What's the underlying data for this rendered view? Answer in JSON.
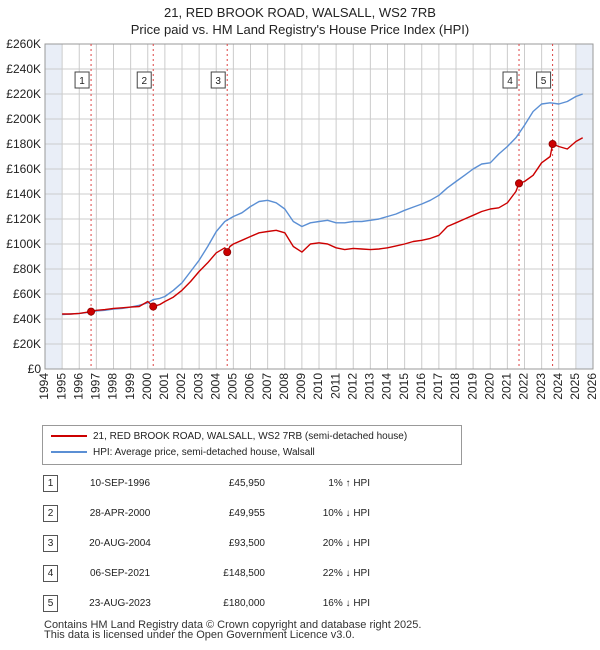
{
  "title_line1": "21, RED BROOK ROAD, WALSALL, WS2 7RB",
  "title_line2": "Price paid vs. HM Land Registry's House Price Index (HPI)",
  "colors": {
    "property": "#cc0000",
    "hpi": "#5b8fd4",
    "grid": "#cccccc",
    "shade": "#e9eef7",
    "event_line": "#dd4444"
  },
  "legend": {
    "property_label": "21, RED BROOK ROAD, WALSALL, WS2 7RB (semi-detached house)",
    "hpi_label": "HPI: Average price, semi-detached house, Walsall"
  },
  "transactions": [
    {
      "num": "1",
      "date": "10-SEP-1996",
      "price": "£45,950",
      "hpi": "1% ↑ HPI"
    },
    {
      "num": "2",
      "date": "28-APR-2000",
      "price": "£49,955",
      "hpi": "10% ↓ HPI"
    },
    {
      "num": "3",
      "date": "20-AUG-2004",
      "price": "£93,500",
      "hpi": "20% ↓ HPI"
    },
    {
      "num": "4",
      "date": "06-SEP-2021",
      "price": "£148,500",
      "hpi": "22% ↓ HPI"
    },
    {
      "num": "5",
      "date": "23-AUG-2023",
      "price": "£180,000",
      "hpi": "16% ↓ HPI"
    }
  ],
  "footer_line1": "Contains HM Land Registry data © Crown copyright and database right 2025.",
  "footer_line2": "This data is licensed under the Open Government Licence v3.0.",
  "chart_data": {
    "type": "line",
    "title": "21, RED BROOK ROAD, WALSALL, WS2 7RB — Price paid vs. HM Land Registry's House Price Index (HPI)",
    "xlabel": "",
    "ylabel": "",
    "xlim": [
      1994,
      2026
    ],
    "ylim": [
      0,
      260000
    ],
    "x_ticks": [
      1994,
      1995,
      1996,
      1997,
      1998,
      1999,
      2000,
      2001,
      2002,
      2003,
      2004,
      2005,
      2006,
      2007,
      2008,
      2009,
      2010,
      2011,
      2012,
      2013,
      2014,
      2015,
      2016,
      2017,
      2018,
      2019,
      2020,
      2021,
      2022,
      2023,
      2024,
      2025,
      2026
    ],
    "y_ticks": [
      0,
      20000,
      40000,
      60000,
      80000,
      100000,
      120000,
      140000,
      160000,
      180000,
      200000,
      220000,
      240000,
      260000
    ],
    "y_tick_labels": [
      "£0",
      "£20K",
      "£40K",
      "£60K",
      "£80K",
      "£100K",
      "£120K",
      "£140K",
      "£160K",
      "£180K",
      "£200K",
      "£220K",
      "£240K",
      "£260K"
    ],
    "shaded_ranges": [
      [
        1994,
        1995
      ],
      [
        2025,
        2026
      ]
    ],
    "events": [
      {
        "label": "1",
        "x": 1996.69,
        "y": 45950
      },
      {
        "label": "2",
        "x": 2000.32,
        "y": 49955
      },
      {
        "label": "3",
        "x": 2004.64,
        "y": 93500
      },
      {
        "label": "4",
        "x": 2021.68,
        "y": 148500
      },
      {
        "label": "5",
        "x": 2023.64,
        "y": 180000
      }
    ],
    "series": [
      {
        "name": "21, RED BROOK ROAD, WALSALL, WS2 7RB (semi-detached house)",
        "x": [
          1995.0,
          1995.5,
          1996.0,
          1996.69,
          1997.0,
          1997.5,
          1998.0,
          1998.5,
          1999.0,
          1999.5,
          2000.0,
          2000.32,
          2000.7,
          2001.0,
          2001.5,
          2002.0,
          2002.5,
          2003.0,
          2003.5,
          2004.0,
          2004.5,
          2004.64,
          2004.8,
          2005.0,
          2005.5,
          2006.0,
          2006.5,
          2007.0,
          2007.5,
          2008.0,
          2008.5,
          2009.0,
          2009.5,
          2010.0,
          2010.5,
          2011.0,
          2011.5,
          2012.0,
          2012.5,
          2013.0,
          2013.5,
          2014.0,
          2014.5,
          2015.0,
          2015.5,
          2016.0,
          2016.5,
          2017.0,
          2017.5,
          2018.0,
          2018.5,
          2019.0,
          2019.5,
          2020.0,
          2020.5,
          2021.0,
          2021.5,
          2021.68,
          2022.0,
          2022.5,
          2023.0,
          2023.5,
          2023.64,
          2024.0,
          2024.5,
          2025.0,
          2025.4
        ],
        "y": [
          44000,
          44000,
          44500,
          45950,
          47000,
          47500,
          48500,
          49000,
          49500,
          50000,
          54000,
          49955,
          51500,
          54000,
          57500,
          63000,
          70000,
          78000,
          85000,
          93000,
          97000,
          93500,
          98000,
          100000,
          103000,
          106000,
          109000,
          110000,
          111000,
          109000,
          98000,
          93500,
          100000,
          101000,
          100000,
          97000,
          95500,
          96500,
          96000,
          95500,
          96000,
          97000,
          98500,
          100000,
          102000,
          103000,
          104500,
          107000,
          114000,
          117000,
          120000,
          123000,
          126000,
          128000,
          129000,
          133000,
          142000,
          148500,
          150000,
          155000,
          165000,
          170000,
          180000,
          178000,
          176000,
          182000,
          185000
        ]
      },
      {
        "name": "HPI: Average price, semi-detached house, Walsall",
        "x": [
          1995.0,
          1995.5,
          1996.0,
          1996.69,
          1997.0,
          1997.5,
          1998.0,
          1998.5,
          1999.0,
          1999.5,
          2000.0,
          2000.32,
          2000.7,
          2001.0,
          2001.5,
          2002.0,
          2002.5,
          2003.0,
          2003.5,
          2004.0,
          2004.5,
          2005.0,
          2005.5,
          2006.0,
          2006.5,
          2007.0,
          2007.5,
          2008.0,
          2008.5,
          2009.0,
          2009.5,
          2010.0,
          2010.5,
          2011.0,
          2011.5,
          2012.0,
          2012.5,
          2013.0,
          2013.5,
          2014.0,
          2014.5,
          2015.0,
          2015.5,
          2016.0,
          2016.5,
          2017.0,
          2017.5,
          2018.0,
          2018.5,
          2019.0,
          2019.5,
          2020.0,
          2020.5,
          2021.0,
          2021.5,
          2022.0,
          2022.5,
          2023.0,
          2023.5,
          2024.0,
          2024.5,
          2025.0,
          2025.4
        ],
        "y": [
          43500,
          44000,
          44500,
          45500,
          46500,
          47000,
          48000,
          48500,
          49500,
          51000,
          53000,
          55500,
          56500,
          58000,
          63000,
          69000,
          78000,
          87000,
          98000,
          110000,
          118000,
          122000,
          125000,
          130000,
          134000,
          135000,
          133000,
          128000,
          118000,
          114000,
          117000,
          118000,
          119000,
          117000,
          117000,
          118000,
          118000,
          119000,
          120000,
          122000,
          124000,
          127000,
          129500,
          132000,
          135000,
          139000,
          145000,
          150000,
          155000,
          160000,
          164000,
          165000,
          172000,
          178000,
          185000,
          195000,
          206000,
          212000,
          213000,
          212000,
          214000,
          218000,
          220000
        ]
      }
    ]
  }
}
